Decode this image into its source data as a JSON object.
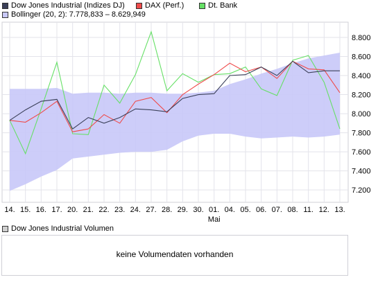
{
  "legend": {
    "items": [
      {
        "label": "Dow Jones Industrial (Indizes DJ)",
        "color": "#3a3f58"
      },
      {
        "label": "DAX (Perf.)",
        "color": "#ef4b4b"
      },
      {
        "label": "Dt. Bank",
        "color": "#66e066"
      }
    ],
    "bollinger_label": "Bollinger (20, 2): 7.778,833 – 8.629,949",
    "bollinger_color": "#c8c8f8"
  },
  "chart_data": {
    "type": "line",
    "categories": [
      "14.",
      "15.",
      "16.",
      "17.",
      "20.",
      "21.",
      "22.",
      "23.",
      "24.",
      "27.",
      "28.",
      "29.",
      "30.",
      "01.",
      "04.",
      "05.",
      "06.",
      "07.",
      "08.",
      "11.",
      "12.",
      "13."
    ],
    "x_sublabel": {
      "index": 13,
      "text": "Mai"
    },
    "y_ticks": [
      "7.200",
      "7.400",
      "7.600",
      "7.800",
      "8.000",
      "8.200",
      "8.400",
      "8.600",
      "8.800"
    ],
    "y_tick_values": [
      7200,
      7400,
      7600,
      7800,
      8000,
      8200,
      8400,
      8600,
      8800
    ],
    "ylim": [
      7070,
      8960
    ],
    "grid": true,
    "series": [
      {
        "name": "Dow Jones Industrial (Indizes DJ)",
        "color": "#3a3f58",
        "values": [
          7930,
          8040,
          8130,
          8150,
          7840,
          7960,
          7900,
          7960,
          8050,
          8040,
          8020,
          8160,
          8200,
          8210,
          8400,
          8410,
          8490,
          8400,
          8550,
          8430,
          8450,
          8450
        ]
      },
      {
        "name": "DAX (Perf.)",
        "color": "#ef4b4b",
        "values": [
          7930,
          7910,
          8010,
          8130,
          7810,
          7840,
          7990,
          7900,
          8130,
          8170,
          8010,
          8200,
          8310,
          8410,
          8530,
          8440,
          8490,
          8370,
          8550,
          8470,
          8460,
          8220
        ]
      },
      {
        "name": "Dt. Bank",
        "color": "#66e066",
        "values": [
          7930,
          7580,
          8050,
          8540,
          7790,
          7780,
          8300,
          8110,
          8410,
          8860,
          8240,
          8420,
          8330,
          8410,
          8420,
          8490,
          8260,
          8190,
          8560,
          8610,
          8330,
          7840
        ]
      }
    ],
    "bollinger": {
      "name": "Bollinger (20, 2)",
      "upper": [
        8260,
        8260,
        8260,
        8270,
        8210,
        8220,
        8220,
        8210,
        8220,
        8220,
        8210,
        8210,
        8220,
        8240,
        8310,
        8360,
        8420,
        8470,
        8530,
        8580,
        8610,
        8640
      ],
      "lower": [
        7190,
        7260,
        7340,
        7410,
        7530,
        7550,
        7570,
        7590,
        7600,
        7600,
        7620,
        7710,
        7770,
        7790,
        7790,
        7760,
        7740,
        7750,
        7760,
        7750,
        7760,
        7780
      ]
    }
  },
  "volume": {
    "legend_label": "Dow Jones Industrial Volumen",
    "legend_color": "#cfcfcf",
    "message": "keine Volumendaten vorhanden"
  }
}
